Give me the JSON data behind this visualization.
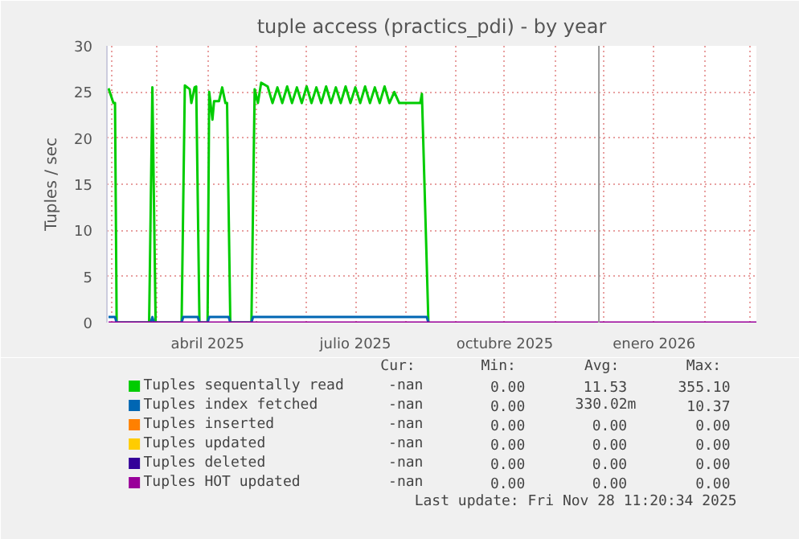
{
  "chart_data": {
    "type": "line",
    "title": "tuple access (practics_pdi) - by year",
    "ylabel": "Tuples / sec",
    "xlim": [
      "2025-01-29",
      "2026-03-05"
    ],
    "xticks": [
      {
        "value": "2025-02-01",
        "label": null
      },
      {
        "value": "2025-03-01",
        "label": null
      },
      {
        "value": "2025-04-01",
        "label": "abril 2025"
      },
      {
        "value": "2025-05-01",
        "label": null
      },
      {
        "value": "2025-06-01",
        "label": null
      },
      {
        "value": "2025-07-01",
        "label": "julio 2025"
      },
      {
        "value": "2025-08-01",
        "label": null
      },
      {
        "value": "2025-09-01",
        "label": null
      },
      {
        "value": "2025-10-01",
        "label": "octubre 2025"
      },
      {
        "value": "2025-11-01",
        "label": null
      },
      {
        "value": "2025-12-01",
        "label": null
      },
      {
        "value": "2026-01-01",
        "label": "enero 2026"
      },
      {
        "value": "2026-02-01",
        "label": null
      },
      {
        "value": "2026-03-01",
        "label": null
      }
    ],
    "ylim": [
      0,
      30
    ],
    "yticks": [
      0,
      5,
      10,
      15,
      20,
      25,
      30
    ],
    "grid": true,
    "legend": "bottom",
    "ref_lines": [
      {
        "axis": "x",
        "value": "2025-11-28",
        "label": null,
        "color": "#999999"
      }
    ],
    "series": [
      {
        "name": "Tuples sequentally read",
        "color": "#00cc00",
        "x": [
          "2025-01-30",
          "2025-02-02",
          "2025-02-03",
          "2025-02-04",
          "2025-02-24",
          "2025-02-26",
          "2025-02-28",
          "2025-03-16",
          "2025-03-18",
          "2025-03-21",
          "2025-03-22",
          "2025-03-24",
          "2025-03-25",
          "2025-03-27",
          "2025-04-01",
          "2025-04-02",
          "2025-04-04",
          "2025-04-05",
          "2025-04-08",
          "2025-04-10",
          "2025-04-12",
          "2025-04-13",
          "2025-04-15",
          "2025-04-28",
          "2025-04-30",
          "2025-05-02",
          "2025-05-04",
          "2025-05-08",
          "2025-05-11",
          "2025-05-14",
          "2025-05-17",
          "2025-05-20",
          "2025-05-23",
          "2025-05-26",
          "2025-05-29",
          "2025-06-01",
          "2025-06-04",
          "2025-06-07",
          "2025-06-10",
          "2025-06-13",
          "2025-06-16",
          "2025-06-19",
          "2025-06-22",
          "2025-06-25",
          "2025-06-28",
          "2025-07-01",
          "2025-07-04",
          "2025-07-07",
          "2025-07-10",
          "2025-07-13",
          "2025-07-16",
          "2025-07-19",
          "2025-07-22",
          "2025-07-25",
          "2025-07-28",
          "2025-08-10",
          "2025-08-11",
          "2025-08-15"
        ],
        "values": [
          25.4,
          23.8,
          23.8,
          0,
          0,
          25.5,
          0,
          0,
          25.7,
          25.3,
          23.8,
          25.5,
          25.6,
          0,
          0,
          25,
          22,
          24,
          24,
          25.5,
          23.8,
          23.8,
          0,
          0,
          25.3,
          23.8,
          26,
          25.6,
          23.8,
          25.5,
          23.8,
          25.6,
          23.8,
          25.5,
          23.8,
          25.6,
          23.8,
          25.5,
          23.8,
          25.6,
          23.8,
          25.5,
          23.8,
          25.6,
          23.8,
          25.5,
          23.8,
          25.6,
          23.8,
          25.5,
          23.8,
          25.6,
          23.8,
          25,
          23.8,
          23.8,
          24.8,
          0
        ]
      },
      {
        "name": "Tuples index fetched",
        "color": "#0066b3",
        "x": [
          "2025-01-30",
          "2025-02-03",
          "2025-02-04",
          "2025-02-25",
          "2025-02-26",
          "2025-02-27",
          "2025-03-16",
          "2025-03-17",
          "2025-03-26",
          "2025-03-27",
          "2025-04-01",
          "2025-04-02",
          "2025-04-14",
          "2025-04-15",
          "2025-04-28",
          "2025-04-29",
          "2025-08-14",
          "2025-08-15"
        ],
        "values": [
          0.6,
          0.6,
          0,
          0,
          0.6,
          0,
          0,
          0.6,
          0.6,
          0,
          0,
          0.6,
          0.6,
          0,
          0,
          0.6,
          0.6,
          0
        ]
      },
      {
        "name": "Tuples inserted",
        "color": "#ff8000"
      },
      {
        "name": "Tuples updated",
        "color": "#ffcc00"
      },
      {
        "name": "Tuples deleted",
        "color": "#330099"
      },
      {
        "name": "Tuples HOT updated",
        "color": "#990099",
        "x": [
          "2025-01-30",
          "2026-03-05"
        ],
        "values": [
          0,
          0
        ]
      }
    ],
    "annotations": [
      "Cur:",
      "Min:",
      "Avg:",
      "Max:",
      "-nan",
      "0.00",
      "11.53",
      "355.10",
      "-nan",
      "0.00",
      "330.02m",
      "10.37",
      "-nan",
      "0.00",
      "0.00",
      "0.00",
      "-nan",
      "0.00",
      "0.00",
      "0.00",
      "-nan",
      "0.00",
      "0.00",
      "0.00",
      "-nan",
      "0.00",
      "0.00",
      "0.00",
      "Last update: Fri Nov 28 11:20:34 2025"
    ]
  }
}
